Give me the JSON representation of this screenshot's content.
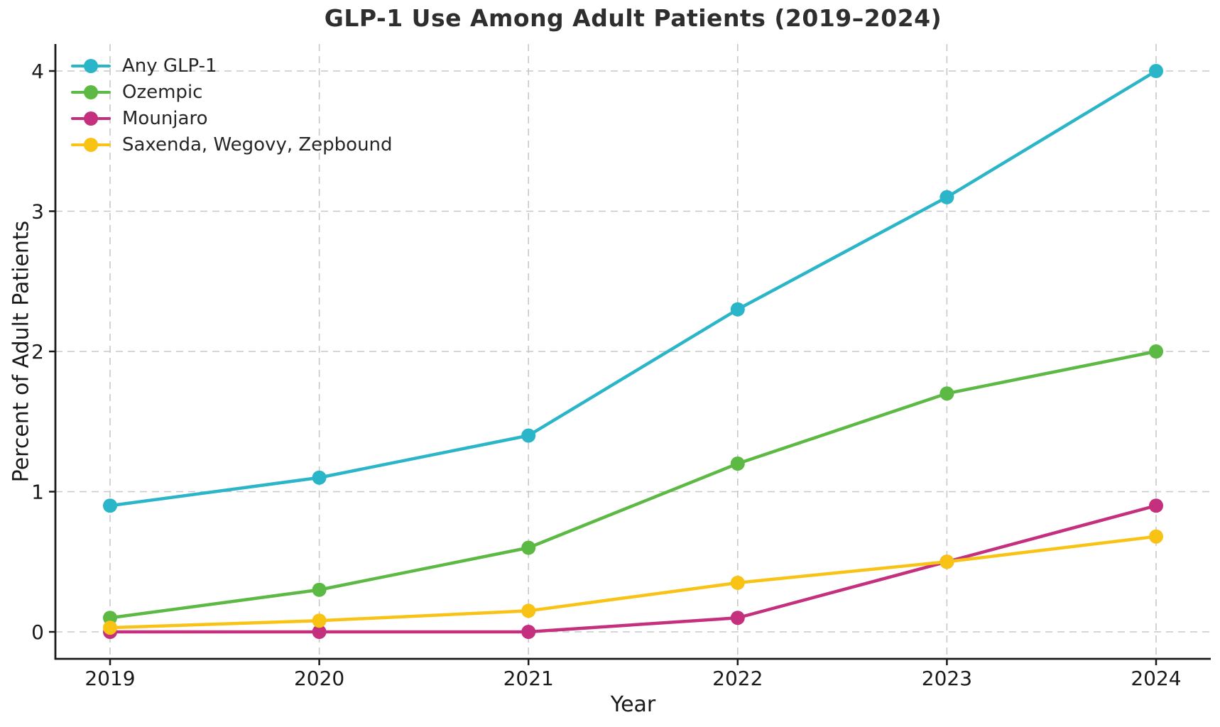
{
  "chart_data": {
    "type": "line",
    "title": "GLP-1 Use Among Adult Patients (2019–2024)",
    "xlabel": "Year",
    "ylabel": "Percent of Adult Patients",
    "categories": [
      "2019",
      "2020",
      "2021",
      "2022",
      "2023",
      "2024"
    ],
    "yticks": [
      "0",
      "1",
      "2",
      "3",
      "4"
    ],
    "ylim": [
      -0.19,
      4.19
    ],
    "grid": {
      "shown": true,
      "style": "dashed",
      "color": "#c8c8c8",
      "axes": "both"
    },
    "legend": {
      "position": "upper-left",
      "frame": false
    },
    "axis_color": "#1a1a1a",
    "series": [
      {
        "name": "Any GLP-1",
        "color": "#2bb5c8",
        "values": [
          0.9,
          1.1,
          1.4,
          2.3,
          3.1,
          4.0
        ]
      },
      {
        "name": "Ozempic",
        "color": "#5cb944",
        "values": [
          0.1,
          0.3,
          0.6,
          1.2,
          1.7,
          2.0
        ]
      },
      {
        "name": "Mounjaro",
        "color": "#c4307d",
        "values": [
          0.0,
          0.0,
          0.0,
          0.1,
          0.5,
          0.9
        ]
      },
      {
        "name": "Saxenda, Wegovy, Zepbound",
        "color": "#f8c315",
        "values": [
          0.03,
          0.08,
          0.15,
          0.35,
          0.5,
          0.68
        ]
      }
    ]
  }
}
